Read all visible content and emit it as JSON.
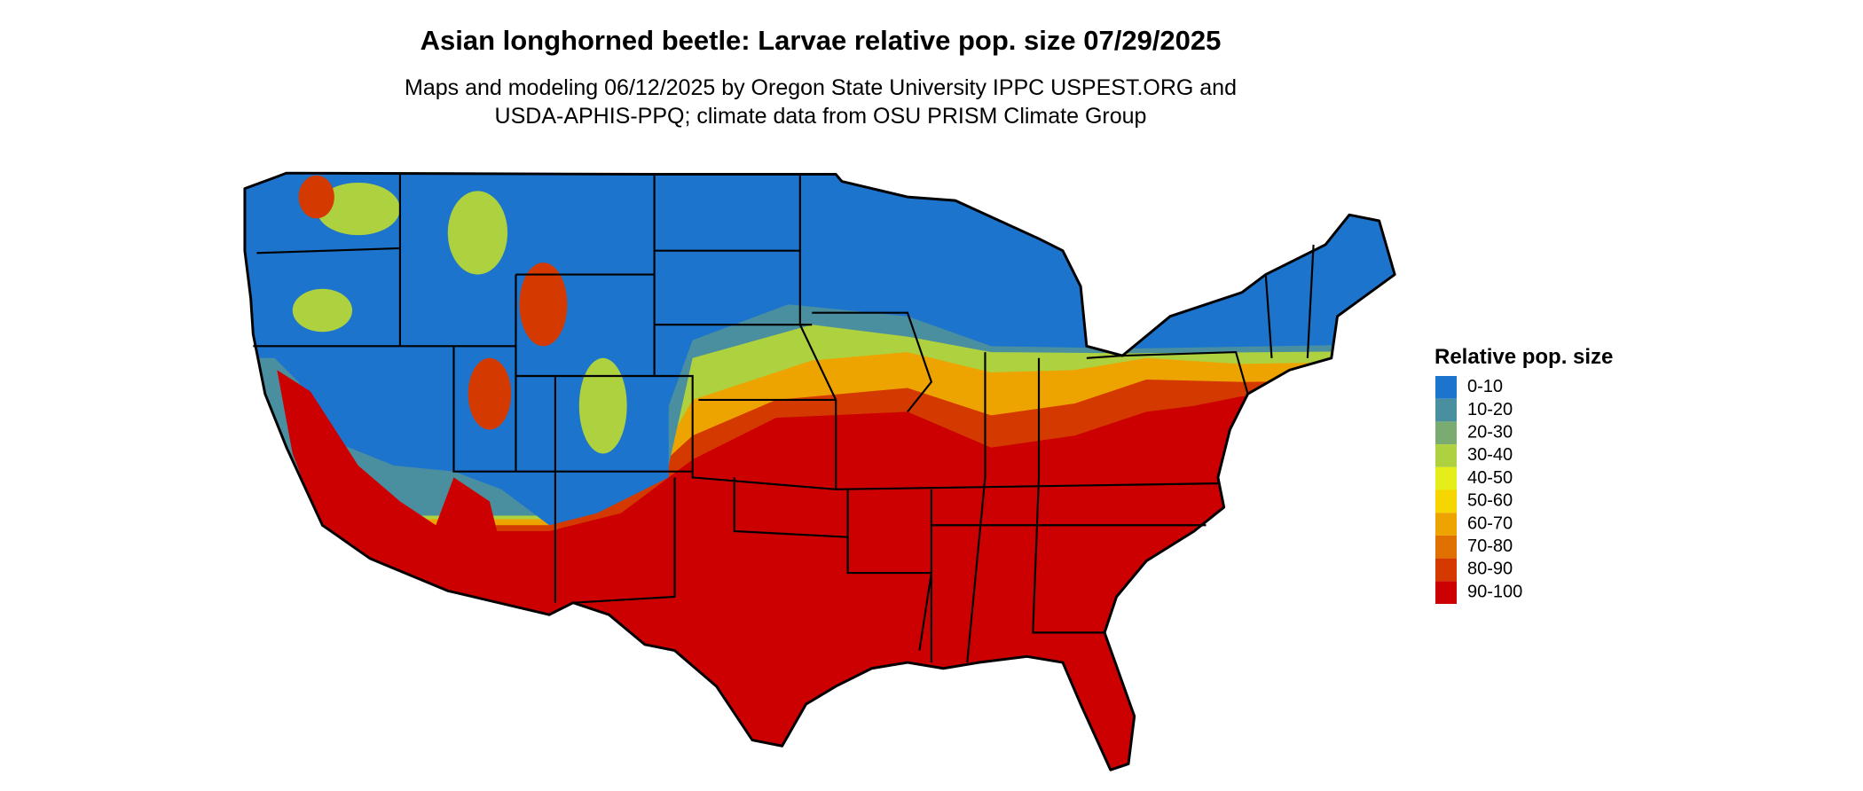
{
  "header": {
    "title": "Asian longhorned beetle: Larvae relative pop. size 07/29/2025",
    "subtitle_lines": [
      "Maps and modeling 06/12/2025 by Oregon State University IPPC USPEST.ORG and",
      "USDA-APHIS-PPQ; climate data from OSU PRISM Climate Group"
    ]
  },
  "legend": {
    "title": "Relative pop. size",
    "items": [
      {
        "label": "0-10",
        "color": "#1c74cc"
      },
      {
        "label": "10-20",
        "color": "#4a8fa0"
      },
      {
        "label": "20-30",
        "color": "#7aab70"
      },
      {
        "label": "30-40",
        "color": "#aed13f"
      },
      {
        "label": "40-50",
        "color": "#e5ee1a"
      },
      {
        "label": "50-60",
        "color": "#f5d600"
      },
      {
        "label": "60-70",
        "color": "#eea400"
      },
      {
        "label": "70-80",
        "color": "#e07000"
      },
      {
        "label": "80-90",
        "color": "#d43a00"
      },
      {
        "label": "90-100",
        "color": "#cc0000"
      }
    ]
  }
}
